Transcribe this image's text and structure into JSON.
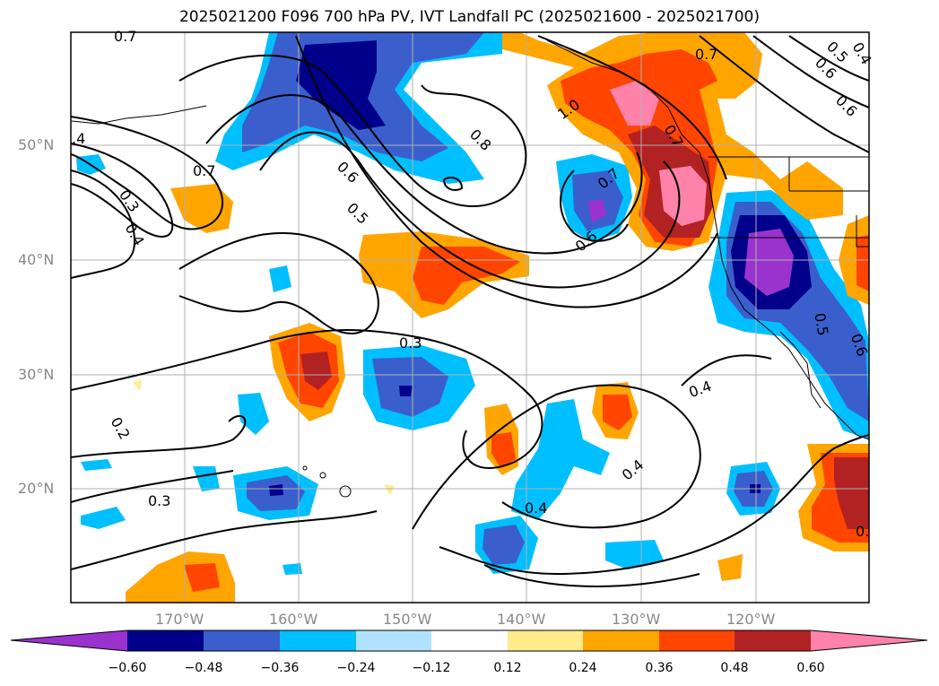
{
  "title": "2025021200 F096 700 hPa PV, IVT Landfall PC (2025021600 - 2025021700)",
  "map": {
    "lon_range": [
      -180,
      -110
    ],
    "lat_range": [
      10,
      60
    ],
    "lon_ticks": [
      "170°W",
      "160°W",
      "150°W",
      "140°W",
      "130°W",
      "120°W"
    ],
    "lat_ticks": [
      "50°N",
      "40°N",
      "30°N",
      "20°N"
    ],
    "gridlines": true
  },
  "contour_labels": [
    "0.7",
    "0.8",
    ".4",
    "0.7",
    "0.3",
    "0.4",
    "0.6",
    "0.5",
    "0.7",
    "0.6",
    "1.0",
    "0.7",
    "0.6",
    "0.5",
    "0.4",
    "0.6",
    "0.3",
    "0.4",
    "0.2",
    "0.3",
    "0.4",
    "0.4",
    "0.5",
    "0.6",
    "0.7",
    "0."
  ],
  "colorbar": {
    "colors": [
      "#9a32cd",
      "#00008b",
      "#3a5fcd",
      "#00bfff",
      "#b0e2ff",
      "#ffffff",
      "#ffec8b",
      "#ffa500",
      "#ff4500",
      "#b22222",
      "#ff82ab"
    ],
    "tick_labels": [
      "−0.60",
      "−0.48",
      "−0.36",
      "−0.24",
      "−0.12",
      "0.12",
      "0.24",
      "0.36",
      "0.48",
      "0.60"
    ]
  }
}
